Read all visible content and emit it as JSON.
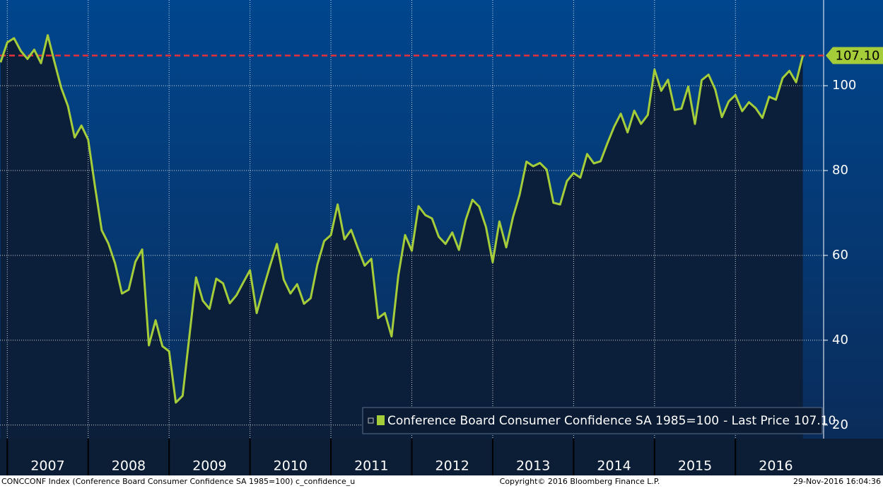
{
  "chart_data": {
    "type": "line",
    "x": [
      2006.917,
      2007.0,
      2007.083,
      2007.167,
      2007.25,
      2007.333,
      2007.417,
      2007.5,
      2007.583,
      2007.667,
      2007.75,
      2007.833,
      2007.917,
      2008.0,
      2008.083,
      2008.167,
      2008.25,
      2008.333,
      2008.417,
      2008.5,
      2008.583,
      2008.667,
      2008.75,
      2008.833,
      2008.917,
      2009.0,
      2009.083,
      2009.167,
      2009.25,
      2009.333,
      2009.417,
      2009.5,
      2009.583,
      2009.667,
      2009.75,
      2009.833,
      2009.917,
      2010.0,
      2010.083,
      2010.167,
      2010.25,
      2010.333,
      2010.417,
      2010.5,
      2010.583,
      2010.667,
      2010.75,
      2010.833,
      2010.917,
      2011.0,
      2011.083,
      2011.167,
      2011.25,
      2011.333,
      2011.417,
      2011.5,
      2011.583,
      2011.667,
      2011.75,
      2011.833,
      2011.917,
      2012.0,
      2012.083,
      2012.167,
      2012.25,
      2012.333,
      2012.417,
      2012.5,
      2012.583,
      2012.667,
      2012.75,
      2012.833,
      2012.917,
      2013.0,
      2013.083,
      2013.167,
      2013.25,
      2013.333,
      2013.417,
      2013.5,
      2013.583,
      2013.667,
      2013.75,
      2013.833,
      2013.917,
      2014.0,
      2014.083,
      2014.167,
      2014.25,
      2014.333,
      2014.417,
      2014.5,
      2014.583,
      2014.667,
      2014.75,
      2014.833,
      2014.917,
      2015.0,
      2015.083,
      2015.167,
      2015.25,
      2015.333,
      2015.417,
      2015.5,
      2015.583,
      2015.667,
      2015.75,
      2015.833,
      2015.917,
      2016.0,
      2016.083,
      2016.167,
      2016.25,
      2016.333,
      2016.417,
      2016.5,
      2016.583,
      2016.667,
      2016.75,
      2016.833
    ],
    "series": [
      {
        "name": "Conference Board Consumer Confidence SA 1985=100",
        "color": "#a5cd39",
        "values": [
          105.5,
          110.2,
          111.2,
          108.2,
          106.3,
          108.5,
          105.3,
          111.9,
          105.6,
          99.5,
          95.2,
          87.8,
          90.6,
          87.3,
          76.4,
          65.9,
          62.8,
          58.1,
          51.0,
          51.9,
          58.5,
          61.4,
          38.8,
          44.7,
          38.6,
          37.4,
          25.3,
          26.9,
          40.8,
          54.8,
          49.3,
          47.4,
          54.5,
          53.4,
          48.7,
          50.6,
          53.6,
          56.5,
          46.4,
          52.3,
          57.7,
          62.7,
          54.3,
          51.0,
          53.2,
          48.6,
          49.9,
          57.8,
          63.4,
          64.8,
          72.0,
          63.8,
          66.0,
          61.7,
          57.6,
          59.2,
          45.2,
          46.4,
          40.9,
          55.2,
          64.8,
          61.1,
          71.6,
          69.5,
          68.7,
          64.4,
          62.7,
          65.4,
          61.3,
          68.4,
          73.1,
          71.5,
          66.7,
          58.4,
          68.0,
          61.9,
          69.0,
          74.3,
          82.1,
          81.0,
          81.8,
          80.2,
          72.4,
          72.0,
          77.5,
          79.4,
          78.3,
          83.9,
          81.7,
          82.2,
          86.4,
          90.3,
          93.4,
          89.0,
          94.1,
          91.0,
          93.1,
          103.8,
          98.8,
          101.4,
          94.3,
          94.6,
          99.8,
          91.0,
          101.3,
          102.6,
          99.1,
          92.6,
          96.3,
          97.8,
          94.0,
          96.1,
          94.7,
          92.4,
          97.4,
          96.7,
          101.8,
          103.5,
          100.8,
          107.1
        ]
      }
    ],
    "legend_text": "- Last Price",
    "last_price": 107.1,
    "last_price_label": "107.10",
    "xlim": [
      2006.91,
      2017.09
    ],
    "xticks": [
      2007,
      2008,
      2009,
      2010,
      2011,
      2012,
      2013,
      2014,
      2015,
      2016
    ],
    "ylim": [
      16.8,
      120.2
    ],
    "yticks": [
      20,
      40,
      60,
      80,
      100
    ],
    "grid": true,
    "footer": {
      "left": "CONCCONF Index (Conference Board Consumer Confidence SA 1985=100) c_confidence_u",
      "center": "Copyright© 2016 Bloomberg Finance L.P.",
      "right": "29-Nov-2016 16:04:36"
    }
  }
}
